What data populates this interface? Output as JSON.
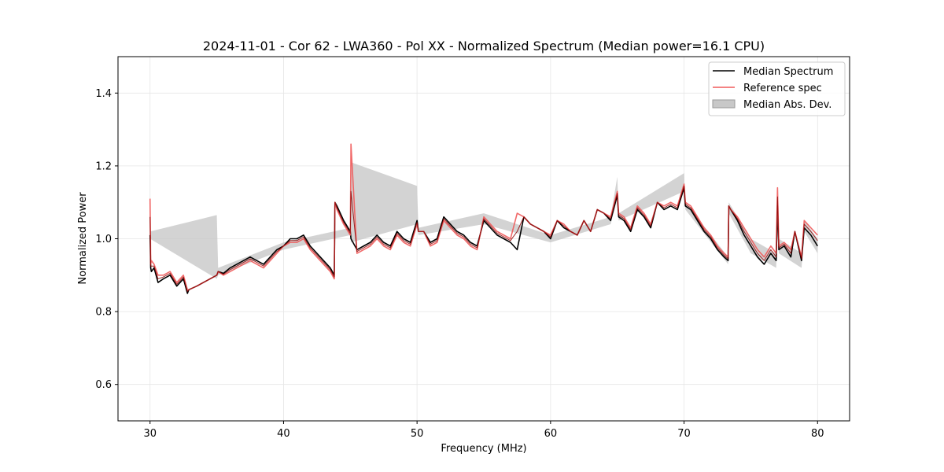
{
  "chart_data": {
    "type": "line",
    "title": "2024-11-01 - Cor 62 - LWA360 - Pol XX - Normalized Spectrum (Median power=16.1 CPU)",
    "xlabel": "Frequency (MHz)",
    "ylabel": "Normalized Power",
    "xlim": [
      27.6,
      82.4
    ],
    "ylim": [
      0.5,
      1.5
    ],
    "xticks": [
      30,
      40,
      50,
      60,
      70,
      80
    ],
    "yticks": [
      0.6,
      0.8,
      1.0,
      1.2,
      1.4
    ],
    "xtick_labels": [
      "30",
      "40",
      "50",
      "60",
      "70",
      "80"
    ],
    "ytick_labels": [
      "0.6",
      "0.8",
      "1.0",
      "1.2",
      "1.4"
    ],
    "grid": true,
    "legend_position": "top-right",
    "legend": [
      "Median Spectrum",
      "Reference spec",
      "Median Abs. Dev."
    ],
    "colors": {
      "median": "#000000",
      "reference": "#f05a5a",
      "mad": "#c8c8c8",
      "overlap": "#8b0000"
    },
    "series": [
      {
        "name": "Median Spectrum",
        "x": [
          30.0,
          30.05,
          30.1,
          30.3,
          30.6,
          31.0,
          31.5,
          32.0,
          32.5,
          32.8,
          32.9,
          33.5,
          34.0,
          34.5,
          35.0,
          35.1,
          35.5,
          36.0,
          36.5,
          37.0,
          37.5,
          38.0,
          38.5,
          39.0,
          39.5,
          40.0,
          40.5,
          41.0,
          41.5,
          42.0,
          42.5,
          43.0,
          43.5,
          43.8,
          43.85,
          44.0,
          44.5,
          45.0,
          45.05,
          45.5,
          46.0,
          46.5,
          47.0,
          47.5,
          48.0,
          48.5,
          49.0,
          49.5,
          50.0,
          50.1,
          50.5,
          51.0,
          51.5,
          52.0,
          52.5,
          53.0,
          53.5,
          54.0,
          54.5,
          55.0,
          55.5,
          56.0,
          56.5,
          57.0,
          57.5,
          58.0,
          58.5,
          59.0,
          59.5,
          60.0,
          60.5,
          61.0,
          61.5,
          62.0,
          62.5,
          63.0,
          63.5,
          64.0,
          64.5,
          65.0,
          65.1,
          65.5,
          66.0,
          66.5,
          67.0,
          67.5,
          68.0,
          68.5,
          69.0,
          69.5,
          70.0,
          70.1,
          70.5,
          71.0,
          71.5,
          72.0,
          72.5,
          73.0,
          73.3,
          73.35,
          73.5,
          74.0,
          74.5,
          75.0,
          75.5,
          76.0,
          76.5,
          76.9,
          77.0,
          77.1,
          77.5,
          78.0,
          78.3,
          78.8,
          79.0,
          79.5,
          80.0
        ],
        "values": [
          1.01,
          0.92,
          0.91,
          0.92,
          0.88,
          0.89,
          0.9,
          0.87,
          0.89,
          0.85,
          0.86,
          0.87,
          0.88,
          0.89,
          0.9,
          0.91,
          0.905,
          0.92,
          0.93,
          0.94,
          0.95,
          0.94,
          0.93,
          0.95,
          0.97,
          0.98,
          1.0,
          1.0,
          1.01,
          0.98,
          0.96,
          0.94,
          0.92,
          0.9,
          1.1,
          1.09,
          1.05,
          1.02,
          1.0,
          0.97,
          0.98,
          0.99,
          1.01,
          0.99,
          0.98,
          1.02,
          1.0,
          0.99,
          1.05,
          1.02,
          1.02,
          0.99,
          1.0,
          1.06,
          1.04,
          1.02,
          1.01,
          0.99,
          0.98,
          1.05,
          1.03,
          1.01,
          1.0,
          0.99,
          0.97,
          1.06,
          1.04,
          1.03,
          1.02,
          1.0,
          1.05,
          1.03,
          1.02,
          1.01,
          1.05,
          1.02,
          1.08,
          1.07,
          1.05,
          1.12,
          1.06,
          1.05,
          1.02,
          1.08,
          1.06,
          1.03,
          1.1,
          1.08,
          1.09,
          1.08,
          1.14,
          1.09,
          1.08,
          1.05,
          1.02,
          1.0,
          0.97,
          0.95,
          0.94,
          1.09,
          1.08,
          1.05,
          1.01,
          0.98,
          0.95,
          0.93,
          0.96,
          0.94,
          1.09,
          0.97,
          0.98,
          0.95,
          1.02,
          0.94,
          1.03,
          1.01,
          0.98
        ]
      },
      {
        "name": "Reference spec",
        "x": [
          30.0,
          30.05,
          30.1,
          30.3,
          30.6,
          31.0,
          31.5,
          32.0,
          32.5,
          32.8,
          32.9,
          33.5,
          34.0,
          34.5,
          35.0,
          35.1,
          35.5,
          36.0,
          36.5,
          37.0,
          37.5,
          38.0,
          38.5,
          39.0,
          39.5,
          40.0,
          40.5,
          41.0,
          41.5,
          42.0,
          42.5,
          43.0,
          43.5,
          43.8,
          43.85,
          44.0,
          44.5,
          45.0,
          45.05,
          45.5,
          46.0,
          46.5,
          47.0,
          47.5,
          48.0,
          48.5,
          49.0,
          49.5,
          50.0,
          50.1,
          50.5,
          51.0,
          51.5,
          52.0,
          52.5,
          53.0,
          53.5,
          54.0,
          54.5,
          55.0,
          55.5,
          56.0,
          56.5,
          57.0,
          57.5,
          58.0,
          58.5,
          59.0,
          59.5,
          60.0,
          60.5,
          61.0,
          61.5,
          62.0,
          62.5,
          63.0,
          63.5,
          64.0,
          64.5,
          65.0,
          65.1,
          65.5,
          66.0,
          66.5,
          67.0,
          67.5,
          68.0,
          68.5,
          69.0,
          69.5,
          70.0,
          70.1,
          70.5,
          71.0,
          71.5,
          72.0,
          72.5,
          73.0,
          73.3,
          73.35,
          73.5,
          74.0,
          74.5,
          75.0,
          75.5,
          76.0,
          76.5,
          76.9,
          77.0,
          77.1,
          77.5,
          78.0,
          78.3,
          78.8,
          79.0,
          79.5,
          80.0
        ],
        "values": [
          1.11,
          0.93,
          0.94,
          0.93,
          0.9,
          0.9,
          0.91,
          0.88,
          0.9,
          0.86,
          0.86,
          0.87,
          0.88,
          0.89,
          0.9,
          0.91,
          0.9,
          0.91,
          0.92,
          0.93,
          0.94,
          0.93,
          0.92,
          0.94,
          0.96,
          0.98,
          0.99,
          0.99,
          1.0,
          0.97,
          0.95,
          0.93,
          0.91,
          0.89,
          1.1,
          1.08,
          1.04,
          1.01,
          1.26,
          0.96,
          0.97,
          0.98,
          1.0,
          0.98,
          0.97,
          1.01,
          0.99,
          0.98,
          1.04,
          1.02,
          1.02,
          0.98,
          0.99,
          1.05,
          1.03,
          1.01,
          1.0,
          0.98,
          0.97,
          1.06,
          1.04,
          1.02,
          1.01,
          1.0,
          1.07,
          1.06,
          1.04,
          1.03,
          1.02,
          1.01,
          1.05,
          1.04,
          1.02,
          1.01,
          1.05,
          1.02,
          1.08,
          1.07,
          1.06,
          1.13,
          1.07,
          1.06,
          1.03,
          1.09,
          1.07,
          1.04,
          1.1,
          1.09,
          1.1,
          1.09,
          1.15,
          1.1,
          1.09,
          1.06,
          1.03,
          1.01,
          0.98,
          0.96,
          0.95,
          1.09,
          1.08,
          1.06,
          1.03,
          1.0,
          0.97,
          0.95,
          0.98,
          0.96,
          1.14,
          0.98,
          0.99,
          0.97,
          1.02,
          0.95,
          1.05,
          1.03,
          1.01
        ]
      },
      {
        "name": "Median Abs. Dev.",
        "x": [
          30.0,
          35.0,
          35.1,
          40.0,
          45.0,
          45.05,
          50.0,
          50.1,
          55.0,
          60.0,
          64.5,
          65.0,
          65.1,
          70.0,
          70.1,
          73.3,
          73.35,
          75.0,
          76.9,
          77.0,
          77.1,
          78.8,
          79.0,
          80.0
        ],
        "lower": [
          1.0,
          0.89,
          0.9,
          0.97,
          1.01,
          0.99,
          1.04,
          1.01,
          1.04,
          0.99,
          1.04,
          1.11,
          1.05,
          1.13,
          1.08,
          0.93,
          1.07,
          0.96,
          0.92,
          1.08,
          0.96,
          0.92,
          1.02,
          0.96
        ],
        "upper": [
          1.02,
          1.065,
          0.92,
          0.99,
          1.03,
          1.21,
          1.145,
          1.03,
          1.07,
          1.01,
          1.06,
          1.17,
          1.07,
          1.18,
          1.1,
          0.95,
          1.1,
          1.0,
          0.96,
          1.1,
          1.0,
          0.96,
          1.05,
          1.0
        ]
      }
    ]
  }
}
